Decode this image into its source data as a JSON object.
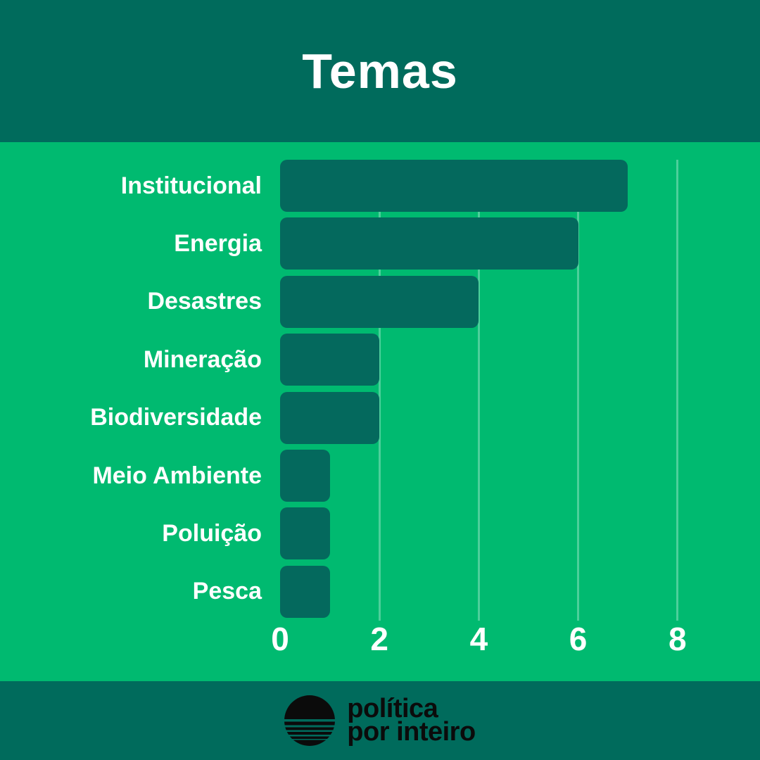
{
  "header": {
    "title": "Temas"
  },
  "chart_data": {
    "type": "bar",
    "orientation": "horizontal",
    "title": "Temas",
    "categories": [
      "Institucional",
      "Energia",
      "Desastres",
      "Mineração",
      "Biodiversidade",
      "Meio Ambiente",
      "Poluição",
      "Pesca"
    ],
    "values": [
      7,
      6,
      4,
      2,
      2,
      1,
      1,
      1
    ],
    "xlabel": "",
    "ylabel": "",
    "x_ticks": [
      0,
      2,
      4,
      6,
      8
    ],
    "xlim": [
      0,
      8.7
    ],
    "grid": "vertical lines at ticks 2,4,6,8",
    "legend": "none",
    "data_labels": "none"
  },
  "footer": {
    "logo_icon": "sun-horizon-stripes-icon",
    "wordmark_line1": "política",
    "wordmark_line2": "por inteiro"
  },
  "colors": {
    "bg": "#00BA70",
    "panel": "#006B5C",
    "bar": "#04695D",
    "gridline": "rgba(255,255,255,0.30)",
    "text_light": "#FFFFFF",
    "logo_black": "#0B0B0B"
  }
}
